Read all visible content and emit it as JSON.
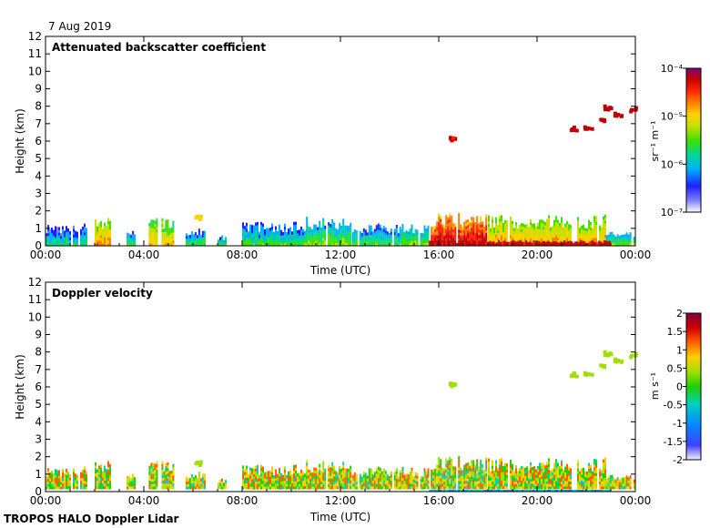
{
  "date": "7 Aug 2019",
  "footer": "TROPOS HALO Doppler Lidar",
  "colors": {
    "rainbow": [
      "#ffffff",
      "#8080ff",
      "#2020ff",
      "#00b0ff",
      "#00d890",
      "#40e000",
      "#c8e000",
      "#ffd000",
      "#ff8000",
      "#ff2000",
      "#c00000",
      "#800080"
    ],
    "velocity": [
      "#f0f0ff",
      "#4040ff",
      "#0090ff",
      "#00d0c0",
      "#20d000",
      "#a0e000",
      "#ffd000",
      "#ff6000",
      "#d00000",
      "#800040"
    ]
  },
  "chart_data": [
    {
      "type": "heatmap",
      "panel": "top",
      "title": "Attenuated backscatter coefficient",
      "xlabel": "Time (UTC)",
      "ylabel": "Height (km)",
      "xlim": [
        0,
        24
      ],
      "ylim": [
        0,
        12
      ],
      "x_ticks": [
        "00:00",
        "04:00",
        "08:00",
        "12:00",
        "16:00",
        "20:00",
        "00:00"
      ],
      "y_ticks": [
        "0",
        "1",
        "2",
        "3",
        "4",
        "5",
        "6",
        "7",
        "8",
        "9",
        "10",
        "11",
        "12"
      ],
      "colorbar": {
        "label": "sr⁻¹ m⁻¹",
        "scale": "log",
        "range": [
          1e-07,
          0.0001
        ],
        "ticks": [
          "10⁻⁷",
          "10⁻⁶",
          "10⁻⁵",
          "10⁻⁴"
        ]
      },
      "features": [
        {
          "t_start": 0.0,
          "t_end": 1.7,
          "h_top": 1.3,
          "level": 0.25
        },
        {
          "t_start": 2.0,
          "t_end": 2.6,
          "h_top": 1.6,
          "level": 0.55
        },
        {
          "t_start": 3.3,
          "t_end": 3.6,
          "h_top": 0.9,
          "level": 0.3
        },
        {
          "t_start": 4.2,
          "t_end": 5.2,
          "h_top": 1.6,
          "level": 0.5
        },
        {
          "t_start": 5.7,
          "t_end": 6.5,
          "h_top": 1.0,
          "level": 0.3
        },
        {
          "t_start": 7.0,
          "t_end": 7.3,
          "h_top": 0.6,
          "level": 0.3
        },
        {
          "t_start": 8.0,
          "t_end": 10.6,
          "h_top": 1.4,
          "level": 0.3
        },
        {
          "t_start": 10.6,
          "t_end": 12.4,
          "h_top": 1.7,
          "level": 0.35
        },
        {
          "t_start": 12.4,
          "t_end": 14.5,
          "h_top": 1.3,
          "level": 0.3
        },
        {
          "t_start": 14.5,
          "t_end": 15.6,
          "h_top": 1.3,
          "level": 0.35
        },
        {
          "t_start": 15.6,
          "t_end": 18.0,
          "h_top": 1.9,
          "level": 0.75
        },
        {
          "t_start": 18.0,
          "t_end": 22.8,
          "h_top": 1.8,
          "level": 0.55
        },
        {
          "t_start": 22.8,
          "t_end": 24.0,
          "h_top": 0.8,
          "level": 0.35
        }
      ],
      "aerosol_layer": {
        "t_start": 15.6,
        "t_end": 23.0,
        "h": 0.3,
        "level": 0.9
      },
      "cloud_patches": [
        {
          "t": 6.2,
          "h": 1.6,
          "level": 0.6
        },
        {
          "t": 16.6,
          "h": 6.1,
          "level": 0.85
        },
        {
          "t": 21.5,
          "h": 6.7,
          "level": 0.88
        },
        {
          "t": 22.1,
          "h": 6.7,
          "level": 0.88
        },
        {
          "t": 22.7,
          "h": 7.2,
          "level": 0.9
        },
        {
          "t": 22.9,
          "h": 7.9,
          "level": 0.9
        },
        {
          "t": 23.3,
          "h": 7.5,
          "level": 0.88
        },
        {
          "t": 23.9,
          "h": 7.8,
          "level": 0.9
        }
      ]
    },
    {
      "type": "heatmap",
      "panel": "bottom",
      "title": "Doppler velocity",
      "xlabel": "Time (UTC)",
      "ylabel": "Height (km)",
      "xlim": [
        0,
        24
      ],
      "ylim": [
        0,
        12
      ],
      "x_ticks": [
        "00:00",
        "04:00",
        "08:00",
        "12:00",
        "16:00",
        "20:00",
        "00:00"
      ],
      "y_ticks": [
        "0",
        "1",
        "2",
        "3",
        "4",
        "5",
        "6",
        "7",
        "8",
        "9",
        "10",
        "11",
        "12"
      ],
      "colorbar": {
        "label": "m s⁻¹",
        "scale": "linear",
        "range": [
          -2,
          2
        ],
        "ticks": [
          "2",
          "1.5",
          "1",
          "0.5",
          "0",
          "-0.5",
          "-1",
          "-1.5",
          "-2"
        ]
      }
    }
  ]
}
